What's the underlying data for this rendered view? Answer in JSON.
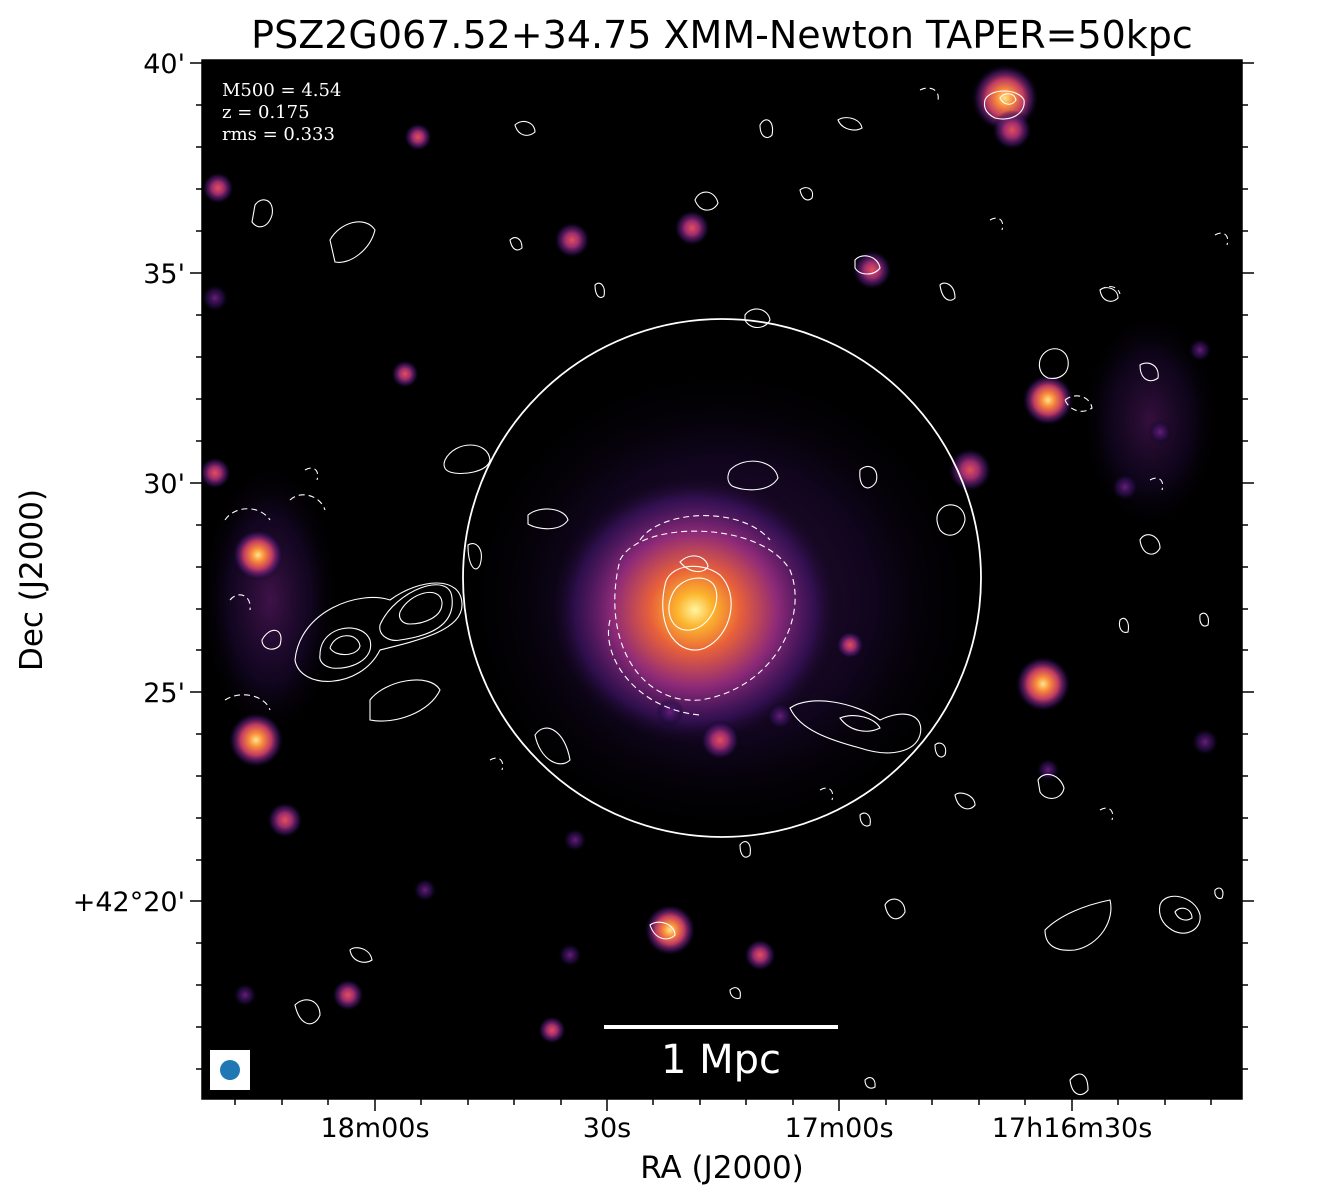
{
  "figure": {
    "title": "PSZ2G067.52+34.75 XMM-Newton TAPER=50kpc",
    "xlabel": "RA (J2000)",
    "ylabel": "Dec (J2000)",
    "x_ticks": [
      "18m00s",
      "30s",
      "17m00s",
      "17h16m30s"
    ],
    "y_ticks": [
      "40'",
      "35'",
      "30'",
      "25'",
      "+42°20'"
    ],
    "info": {
      "m500": "M500 = 4.54",
      "z": "z = 0.175",
      "rms": "rms = 0.333"
    },
    "scale_bar_label": "1 Mpc",
    "colors": {
      "background": "#000000",
      "contour": "#ffffff",
      "beam": "#1f77b4",
      "hot": "#fcb42d",
      "warm": "#d9445b",
      "cool": "#5b1f7e"
    },
    "colormap": "inferno"
  }
}
